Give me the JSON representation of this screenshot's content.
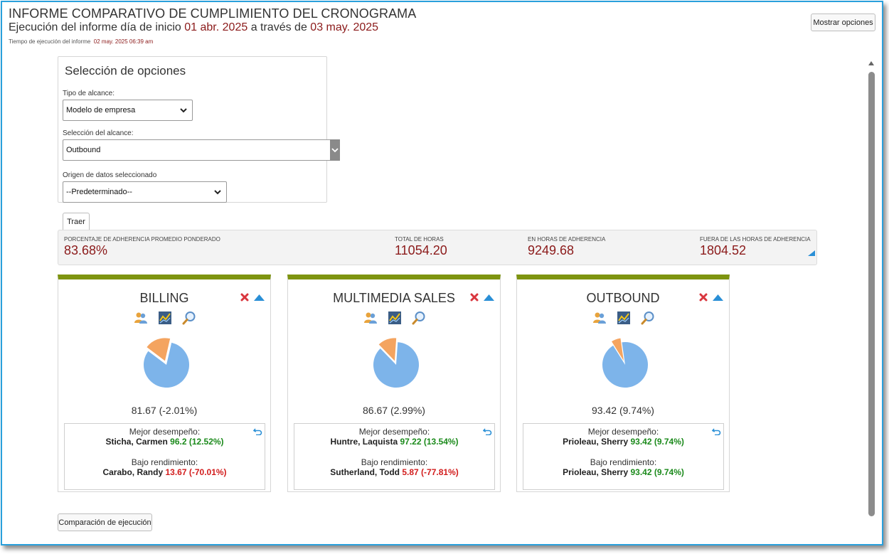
{
  "header": {
    "title": "INFORME COMPARATIVO DE CUMPLIMIENTO DEL CRONOGRAMA",
    "subtitle_prefix": "Ejecución del informe día de inicio",
    "start_date": "01 abr. 2025",
    "subtitle_mid": "a través de",
    "end_date": "03 may. 2025",
    "runtime_label": "Tiempo de ejecución del informe",
    "runtime_value": "02 may. 2025 06:39 am",
    "show_options_label": "Mostrar opciones"
  },
  "options": {
    "title": "Selección de opciones",
    "scope_type_label": "Tipo de alcance:",
    "scope_type_value": "Modelo de empresa",
    "scope_selection_label": "Selección del alcance:",
    "scope_selection_value": "Outbound",
    "data_source_label": "Origen de datos seleccionado",
    "data_source_value": "--Predeterminado--",
    "fetch_label": "Traer"
  },
  "summary": {
    "weighted_avg_label": "PORCENTAJE DE ADHERENCIA PROMEDIO PONDERADO",
    "weighted_avg_value": "83.68%",
    "total_hours_label": "TOTAL DE HORAS",
    "total_hours_value": "11054.20",
    "in_adherence_label": "EN HORAS DE ADHERENCIA",
    "in_adherence_value": "9249.68",
    "out_adherence_label": "FUERA DE LAS HORAS DE ADHERENCIA",
    "out_adherence_value": "1804.52"
  },
  "cards": [
    {
      "title": "BILLING",
      "score": "81.67 (-2.01%)",
      "adherence_fraction": 0.8167,
      "best_label": "Mejor desempeño:",
      "best_name": "Sticha, Carmen",
      "best_value": "96.2 (12.52%)",
      "low_label": "Bajo rendimiento:",
      "low_name": "Carabo, Randy",
      "low_value": "13.67 (-70.01%)",
      "low_negative": true
    },
    {
      "title": "MULTIMEDIA SALES",
      "score": "86.67 (2.99%)",
      "adherence_fraction": 0.8667,
      "best_label": "Mejor desempeño:",
      "best_name": "Huntre, Laquista",
      "best_value": "97.22 (13.54%)",
      "low_label": "Bajo rendimiento:",
      "low_name": "Sutherland, Todd",
      "low_value": "5.87 (-77.81%)",
      "low_negative": true
    },
    {
      "title": "OUTBOUND",
      "score": "93.42 (9.74%)",
      "adherence_fraction": 0.9342,
      "best_label": "Mejor desempeño:",
      "best_name": "Prioleau, Sherry",
      "best_value": "93.42 (9.74%)",
      "low_label": "Bajo rendimiento:",
      "low_name": "Prioleau, Sherry",
      "low_value": "93.42 (9.74%)",
      "low_negative": false
    }
  ],
  "footer": {
    "compare_label": "Comparación de ejecución"
  },
  "colors": {
    "accent_red": "#8b1a1a",
    "card_top_bar": "#7e9410",
    "pie_main": "#7db4ea",
    "pie_slice": "#f4a460",
    "positive": "#1b8a1b",
    "negative": "#d21c1c",
    "frame_border": "#2aa0dc"
  },
  "icons": {
    "card_actions": [
      "close-icon",
      "collapse-up-icon"
    ],
    "card_tools": [
      "users-icon",
      "chart-icon",
      "magnifier-icon"
    ],
    "perf_box": "undo-icon"
  }
}
